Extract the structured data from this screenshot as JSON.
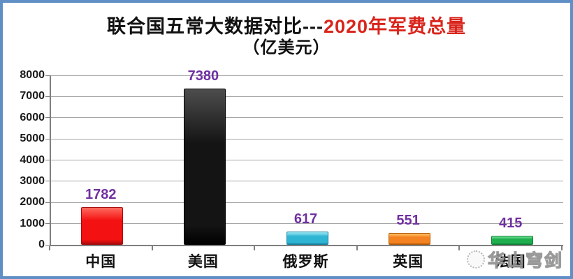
{
  "window": {
    "border_color": "#5f8fc4",
    "background": "#ffffff"
  },
  "title": {
    "prefix": "联合国五常大数据对比---",
    "highlight": "2020年军费总量",
    "highlight_color": "#d9251c",
    "subtitle": "（亿美元）"
  },
  "watermark": {
    "text": "华山穹剑"
  },
  "chart_data": {
    "type": "bar",
    "title": "联合国五常大数据对比---2020年军费总量",
    "subtitle": "（亿美元）",
    "xlabel": "",
    "ylabel": "",
    "categories": [
      "中国",
      "美国",
      "俄罗斯",
      "英国",
      "法国"
    ],
    "values": [
      1782,
      7380,
      617,
      551,
      415
    ],
    "bars": [
      {
        "category": "中国",
        "value": 1782,
        "color": "#f31111",
        "color_light": "#ff6a5e",
        "color_dark": "#a80b0b"
      },
      {
        "category": "美国",
        "value": 7380,
        "color": "#141414",
        "color_light": "#4d4d4d",
        "color_dark": "#000000"
      },
      {
        "category": "俄罗斯",
        "value": 617,
        "color": "#2fb4d4",
        "color_light": "#9fe9f5",
        "color_dark": "#17819f"
      },
      {
        "category": "英国",
        "value": 551,
        "color": "#f58220",
        "color_light": "#ffc469",
        "color_dark": "#b05a09"
      },
      {
        "category": "法国",
        "value": 415,
        "color": "#1fae4e",
        "color_light": "#82e8a6",
        "color_dark": "#0e7d36"
      }
    ],
    "ylim": [
      0,
      8000
    ],
    "yticks": [
      0,
      1000,
      2000,
      3000,
      4000,
      5000,
      6000,
      7000,
      8000
    ],
    "value_label_color": "#7030a0",
    "grid": true,
    "legend": false
  }
}
